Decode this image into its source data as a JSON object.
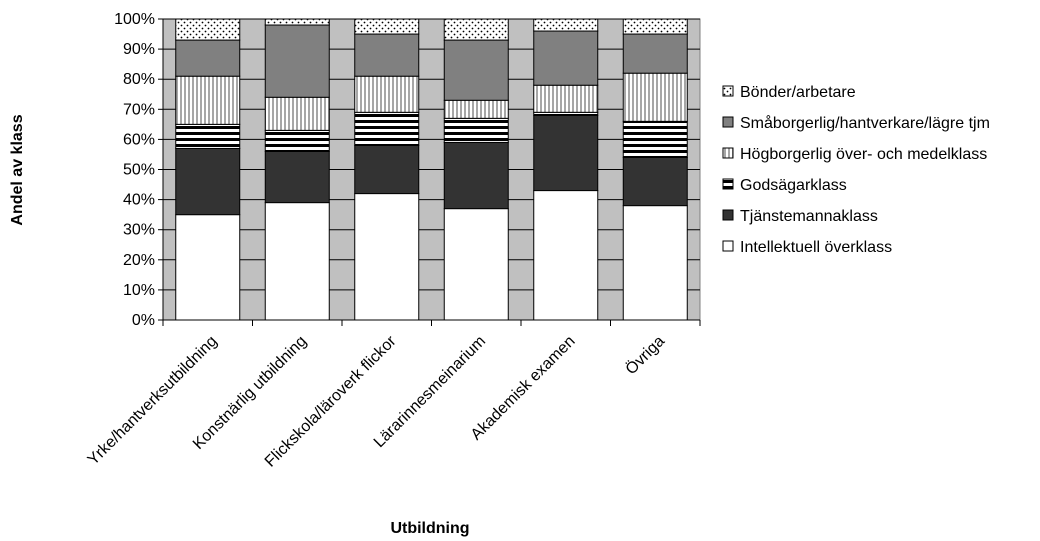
{
  "chart_data": {
    "type": "bar",
    "stacked": true,
    "xlabel": "Utbildning",
    "ylabel": "Andel av klass",
    "ylim": [
      0,
      100
    ],
    "yticks": [
      "0%",
      "10%",
      "20%",
      "30%",
      "40%",
      "50%",
      "60%",
      "70%",
      "80%",
      "90%",
      "100%"
    ],
    "grid": true,
    "legend_position": "right",
    "categories": [
      "Yrke/hantverksutbildning",
      "Konstnärlig utbildning",
      "Flickskola/läroverk flickor",
      "Lärarinnesmeinarium",
      "Akademisk examen",
      "Övriga"
    ],
    "series": [
      {
        "name": "Intellektuell överklass",
        "values": [
          35,
          39,
          42,
          37,
          43,
          38
        ]
      },
      {
        "name": "Tjänstemannaklass",
        "values": [
          22,
          17,
          16,
          22,
          25,
          16
        ]
      },
      {
        "name": "Godsägarklass",
        "values": [
          8,
          7,
          11,
          8,
          1,
          12
        ]
      },
      {
        "name": "Högborgerlig över- och medelklass",
        "values": [
          16,
          11,
          12,
          6,
          9,
          16
        ]
      },
      {
        "name": "Småborgerlig/hantverkare/lägre tjm",
        "values": [
          12,
          24,
          14,
          20,
          18,
          13
        ]
      },
      {
        "name": "Bönder/arbetare",
        "values": [
          7,
          2,
          5,
          7,
          4,
          5
        ]
      }
    ],
    "colors": {
      "plot_background": "#c0c0c0",
      "Intellektuell överklass": "#ffffff",
      "Tjänstemannaklass": "#333333",
      "Godsägarklass": "horizontal-stripes-black-white",
      "Högborgerlig över- och medelklass": "vertical-stripes-gray-white",
      "Småborgerlig/hantverkare/lägre tjm": "#808080",
      "Bönder/arbetare": "dotted-white"
    }
  }
}
